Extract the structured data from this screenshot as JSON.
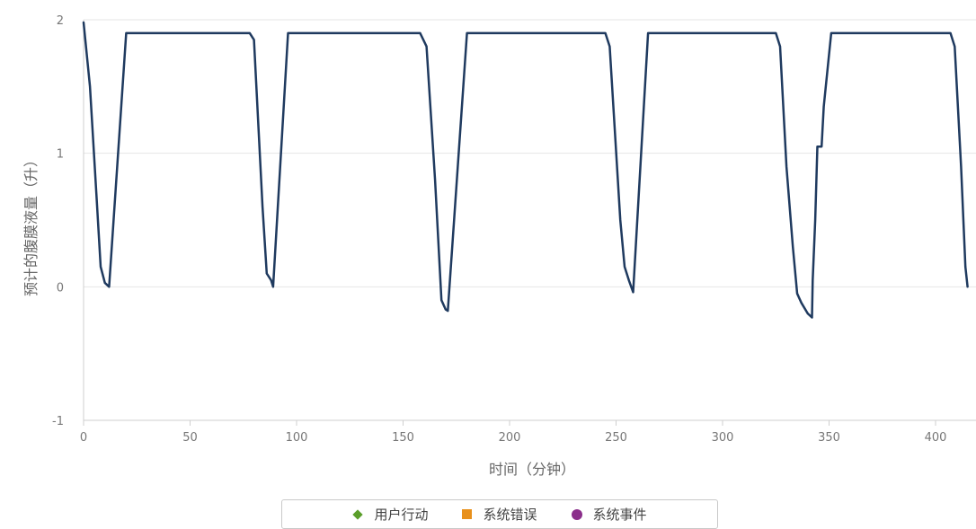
{
  "chart_data": {
    "type": "line",
    "title": "",
    "xlabel": "时间（分钟）",
    "ylabel": "预计的腹膜液量（升）",
    "xlim": [
      0,
      415
    ],
    "ylim": [
      -1,
      2
    ],
    "x_ticks": [
      "0",
      "50",
      "100",
      "150",
      "200",
      "250",
      "300",
      "350",
      "400"
    ],
    "y_ticks": [
      "-1",
      "0",
      "1",
      "2"
    ],
    "grid": true,
    "line_color": "#1f3a5f",
    "series": [
      {
        "points": [
          [
            0,
            1.98
          ],
          [
            3,
            1.5
          ],
          [
            6,
            0.7
          ],
          [
            8,
            0.15
          ],
          [
            10,
            0.03
          ],
          [
            12,
            0.0
          ],
          [
            20,
            1.9
          ],
          [
            78,
            1.9
          ],
          [
            80,
            1.85
          ],
          [
            84,
            0.6
          ],
          [
            86,
            0.1
          ],
          [
            88,
            0.05
          ],
          [
            89,
            0.0
          ],
          [
            96,
            1.9
          ],
          [
            158,
            1.9
          ],
          [
            161,
            1.8
          ],
          [
            165,
            0.8
          ],
          [
            168,
            -0.1
          ],
          [
            170,
            -0.17
          ],
          [
            171,
            -0.18
          ],
          [
            180,
            1.9
          ],
          [
            245,
            1.9
          ],
          [
            247,
            1.8
          ],
          [
            252,
            0.5
          ],
          [
            254,
            0.15
          ],
          [
            256,
            0.05
          ],
          [
            258,
            -0.04
          ],
          [
            265,
            1.9
          ],
          [
            325,
            1.9
          ],
          [
            327,
            1.8
          ],
          [
            330,
            0.9
          ],
          [
            333,
            0.3
          ],
          [
            335,
            -0.05
          ],
          [
            337,
            -0.12
          ],
          [
            340,
            -0.2
          ],
          [
            342,
            -0.23
          ],
          [
            342.3,
            0.05
          ],
          [
            343.5,
            0.5
          ],
          [
            344.5,
            1.05
          ],
          [
            346.5,
            1.05
          ],
          [
            347.5,
            1.35
          ],
          [
            351,
            1.9
          ],
          [
            407,
            1.9
          ],
          [
            409,
            1.8
          ],
          [
            412,
            0.9
          ],
          [
            414,
            0.15
          ],
          [
            415,
            0.0
          ]
        ]
      }
    ],
    "legend": {
      "placement": "bottom-center",
      "items": [
        {
          "label": "用户行动",
          "symbol": "diamond",
          "color": "#5a9e2a"
        },
        {
          "label": "系统错误",
          "symbol": "square",
          "color": "#e8901b"
        },
        {
          "label": "系统事件",
          "symbol": "circle",
          "color": "#8b2f8b"
        }
      ]
    }
  }
}
